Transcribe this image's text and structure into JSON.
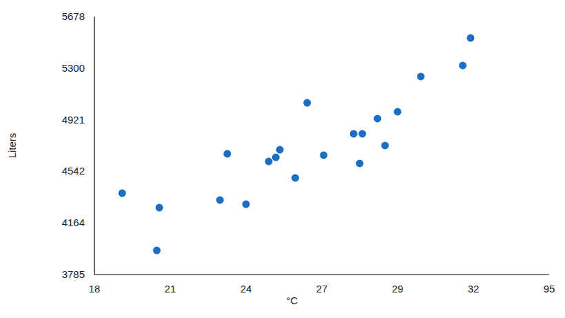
{
  "chart_data": {
    "type": "scatter",
    "x_label": "°C",
    "y_label": "Liters",
    "x": [
      19.1,
      20.57,
      20.47,
      22.97,
      23.26,
      24.0,
      24.9,
      25.18,
      25.34,
      25.95,
      26.42,
      27.05,
      27.84,
      28.07,
      28.0,
      28.47,
      28.67,
      29.0,
      29.92,
      31.58,
      31.89
    ],
    "values": [
      4382,
      4276,
      3962,
      4332,
      4671,
      4301,
      4615,
      4645,
      4701,
      4494,
      5045,
      4661,
      4818,
      4818,
      4600,
      4929,
      4732,
      4980,
      5238,
      5319,
      5521
    ],
    "color": "#1a6fc4",
    "marker": "circle",
    "xlim": [
      18,
      95
    ],
    "xticks": [
      18,
      21,
      24,
      27,
      29,
      32,
      95
    ],
    "ylim": [
      3785,
      5678
    ],
    "yticks": [
      3785,
      4164,
      4542,
      4921,
      5300,
      5678
    ],
    "grid": false
  }
}
